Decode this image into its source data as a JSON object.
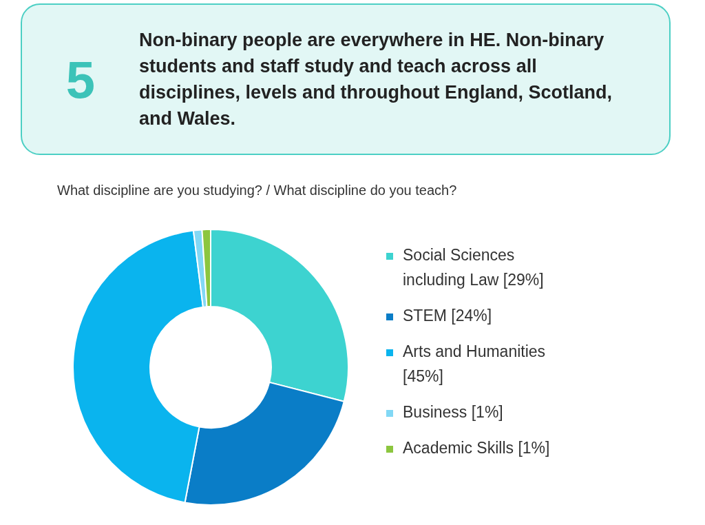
{
  "chart_data": {
    "type": "donut",
    "title": "Non-binary people are everywhere in HE. Non-binary students and staff study and teach across all disciplines, levels and throughout England, Scotland, and Wales.",
    "subtitle": "What discipline are you studying? / What discipline do you teach?",
    "annotations": [
      "5"
    ],
    "categories": [
      "Social Sciences including Law",
      "STEM",
      "Arts and Humanities",
      "Business",
      "Academic Skills"
    ],
    "values": [
      29,
      24,
      45,
      1,
      1
    ],
    "value_labels": [
      "[29%]",
      "[24%]",
      "[45%]",
      "[1%]",
      "[1%]"
    ],
    "colors": [
      "#3dd3d0",
      "#0a7dc7",
      "#0ab4ee",
      "#82d8f5",
      "#8cc63f"
    ],
    "legend": "right"
  }
}
